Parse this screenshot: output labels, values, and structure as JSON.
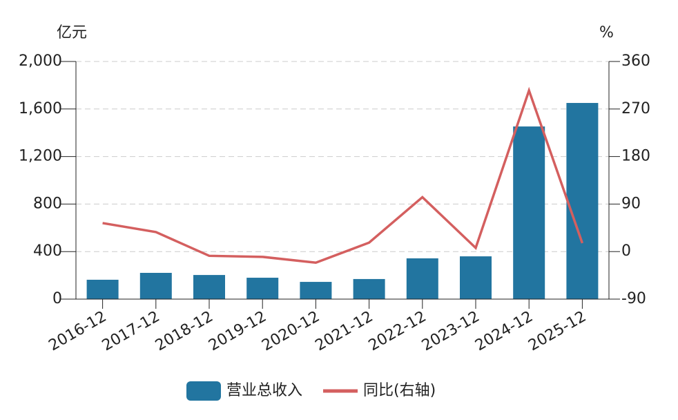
{
  "chart_data": {
    "type": "bar-line",
    "y_unit": "亿元",
    "y2_unit": "%",
    "categories": [
      "2016-12",
      "2017-12",
      "2018-12",
      "2019-12",
      "2020-12",
      "2021-12",
      "2022-12",
      "2023-12",
      "2024-12",
      "2025-12"
    ],
    "series": [
      {
        "name": "营业总收入",
        "type": "bar",
        "color": "#2275a0",
        "values": [
          163,
          221,
          203,
          180,
          145,
          169,
          343,
          360,
          1453,
          1651
        ]
      },
      {
        "name": "同比(右轴)",
        "type": "line",
        "axis": "y2",
        "color": "#d45f5f",
        "values": [
          54,
          37,
          -8,
          -10,
          -21,
          17,
          103,
          7,
          305,
          16
        ]
      }
    ],
    "ylim": [
      0,
      2000
    ],
    "yticks": [
      0,
      400,
      800,
      {
        "value": 1200,
        "label": "1,200"
      },
      {
        "value": 1600,
        "label": "1,600"
      },
      {
        "value": 2000,
        "label": "2,000"
      }
    ],
    "y2lim": [
      -90,
      360
    ],
    "y2ticks": [
      -90,
      0,
      90,
      180,
      270,
      360
    ],
    "grid": true
  }
}
